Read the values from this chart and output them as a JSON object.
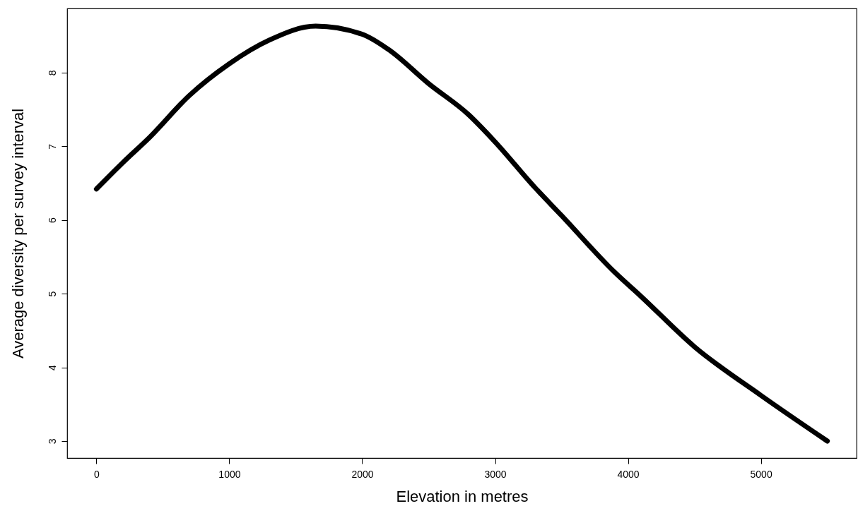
{
  "chart_data": {
    "type": "line",
    "xlabel": "Elevation in metres",
    "ylabel": "Average diversity per survey interval",
    "x": [
      0,
      200,
      400,
      700,
      1000,
      1300,
      1650,
      2000,
      2200,
      2500,
      2800,
      3000,
      3300,
      3500,
      3900,
      4100,
      4500,
      5000,
      5500
    ],
    "series": [
      {
        "color": "#000000",
        "values": [
          6.42,
          6.78,
          7.12,
          7.69,
          8.12,
          8.44,
          8.63,
          8.52,
          8.31,
          7.85,
          7.43,
          7.06,
          6.44,
          6.06,
          5.29,
          4.96,
          4.28,
          3.62,
          3.0
        ]
      }
    ],
    "xlim": [
      -220,
      5720
    ],
    "ylim": [
      2.77,
      8.87
    ],
    "xticks": [
      0,
      1000,
      2000,
      3000,
      4000,
      5000
    ],
    "yticks": [
      3,
      4,
      5,
      6,
      7,
      8
    ],
    "grid": false,
    "marker": "none",
    "line_style": "solid"
  }
}
